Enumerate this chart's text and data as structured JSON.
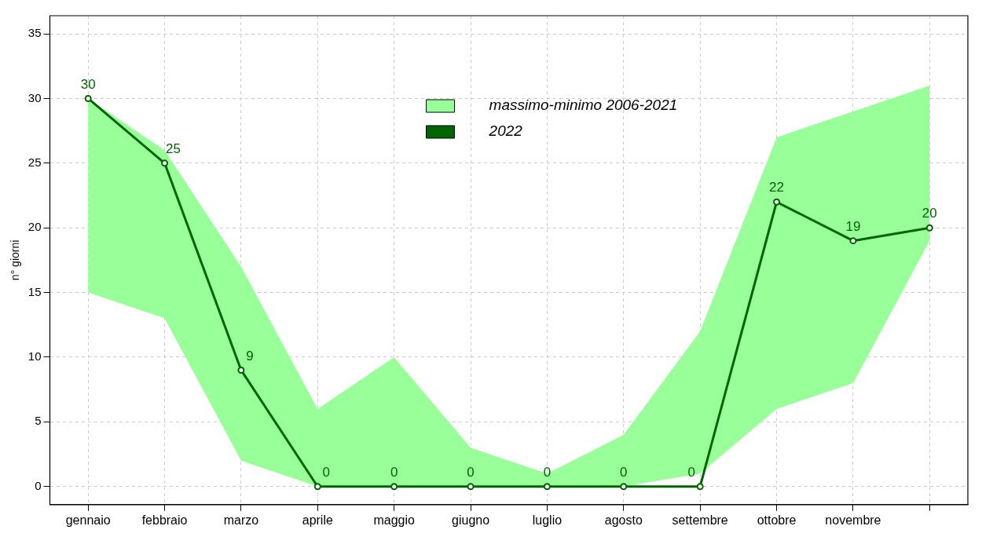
{
  "chart_data": {
    "type": "line",
    "ylabel": "n° giorni",
    "categories": [
      "gennaio",
      "febbraio",
      "marzo",
      "aprile",
      "maggio",
      "giugno",
      "luglio",
      "agosto",
      "settembre",
      "ottobre",
      "novembre",
      null
    ],
    "series": [
      {
        "name": "massimo-minimo 2006-2021",
        "type": "area",
        "color": "#99ff99",
        "values": [
          null,
          null,
          null,
          null,
          null,
          null,
          null,
          null,
          null,
          null,
          null,
          null
        ],
        "lower": [
          15,
          13,
          2,
          0,
          0,
          0,
          0,
          0,
          1,
          6,
          8,
          19
        ],
        "upper": [
          30,
          26,
          17,
          6,
          10,
          3,
          1,
          4,
          12,
          27,
          29,
          31
        ]
      },
      {
        "name": "2022",
        "type": "line",
        "color": "#006400",
        "marker": "circle",
        "values": [
          30,
          25,
          9,
          0,
          0,
          0,
          0,
          0,
          0,
          22,
          19,
          20
        ],
        "value_labels": [
          "30",
          "25",
          "9",
          "0",
          "0",
          "0",
          "0",
          "0",
          "0",
          "22",
          "19",
          "20"
        ]
      }
    ],
    "ylim": [
      -1.4,
      36.4
    ],
    "yticks": [
      0,
      5,
      10,
      15,
      20,
      25,
      30,
      35
    ],
    "grid": true,
    "legend": "top",
    "line_style": "solid"
  }
}
